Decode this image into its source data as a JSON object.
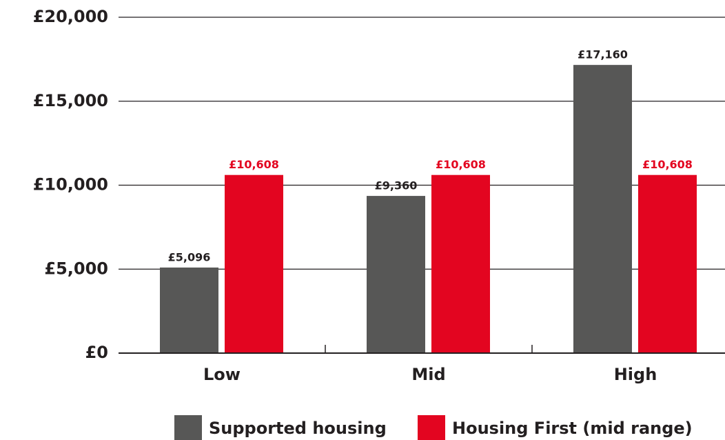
{
  "chart_data": {
    "type": "bar",
    "categories": [
      "Low",
      "Mid",
      "High"
    ],
    "series": [
      {
        "name": "Supported housing",
        "color": "#575756",
        "values": [
          5096,
          9360,
          17160
        ],
        "value_labels": [
          "£5,096",
          "£9,360",
          "£17,160"
        ]
      },
      {
        "name": "Housing First (mid range)",
        "color": "#e30520",
        "values": [
          10608,
          10608,
          10608
        ],
        "value_labels": [
          "£10,608",
          "£10,608",
          "£10,608"
        ]
      }
    ],
    "ylim": [
      0,
      20000
    ],
    "yticks": [
      {
        "value": 0,
        "label": "£0"
      },
      {
        "value": 5000,
        "label": "£5,000"
      },
      {
        "value": 10000,
        "label": "£10,000"
      },
      {
        "value": 15000,
        "label": "£15,000"
      },
      {
        "value": 20000,
        "label": "£20,000"
      }
    ],
    "grid": true,
    "legend": "bottom"
  }
}
